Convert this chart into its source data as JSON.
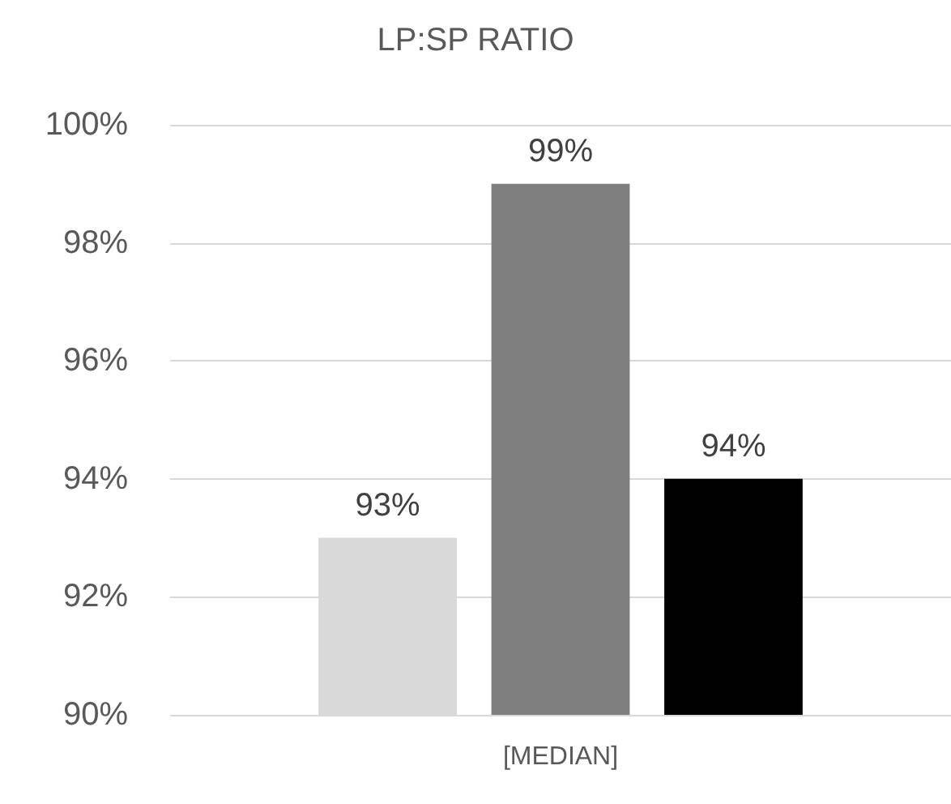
{
  "chart_data": {
    "type": "bar",
    "title": "LP:SP RATIO",
    "categories": [
      "[MEDIAN]"
    ],
    "series": [
      {
        "color": "#d9d9d9",
        "values": [
          93
        ],
        "value_labels": [
          "93%"
        ]
      },
      {
        "color": "#7f7f7f",
        "values": [
          99
        ],
        "value_labels": [
          "99%"
        ]
      },
      {
        "color": "#000000",
        "values": [
          94
        ],
        "value_labels": [
          "94%"
        ]
      }
    ],
    "ylim": [
      90,
      100
    ],
    "yticks": [
      {
        "value": 90,
        "label": "90%"
      },
      {
        "value": 92,
        "label": "92%"
      },
      {
        "value": 94,
        "label": "94%"
      },
      {
        "value": 96,
        "label": "96%"
      },
      {
        "value": 98,
        "label": "98%"
      },
      {
        "value": 100,
        "label": "100%"
      }
    ],
    "grid": "y"
  }
}
